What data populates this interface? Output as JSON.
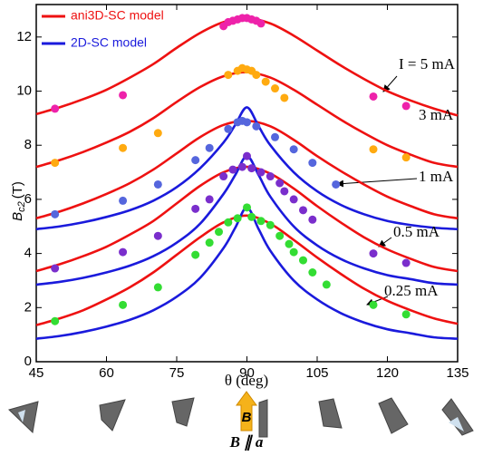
{
  "chart_data": {
    "type": "line",
    "xlabel": "θ (deg)",
    "ylabel": {
      "symbol": "B",
      "subscript": "c2",
      "unit": "(T)"
    },
    "xlim": [
      45,
      135
    ],
    "xticks": [
      45,
      60,
      75,
      90,
      105,
      120,
      135
    ],
    "ylim": [
      0,
      13.2
    ],
    "yticks": [
      0,
      2,
      4,
      6,
      8,
      10,
      12
    ],
    "legend": "upper left",
    "series": [
      {
        "name": "ani3D-SC model",
        "type": "line",
        "color": "#ee1111",
        "x": [
          45,
          50,
          55,
          60,
          65,
          70,
          75,
          80,
          85,
          90,
          95,
          100,
          105,
          110,
          115,
          120,
          125,
          130,
          135
        ],
        "values": [
          9.15,
          9.4,
          9.7,
          10.05,
          10.5,
          11.0,
          11.6,
          12.15,
          12.55,
          12.7,
          12.5,
          12.05,
          11.5,
          10.95,
          10.45,
          10.0,
          9.65,
          9.35,
          9.1
        ]
      },
      {
        "type": "line",
        "color": "#ee1111",
        "x": [
          45,
          50,
          55,
          60,
          65,
          70,
          75,
          80,
          85,
          90,
          95,
          100,
          105,
          110,
          115,
          120,
          125,
          130,
          135
        ],
        "values": [
          7.2,
          7.45,
          7.75,
          8.1,
          8.5,
          9.0,
          9.6,
          10.15,
          10.55,
          10.7,
          10.5,
          10.05,
          9.5,
          8.95,
          8.45,
          8.0,
          7.65,
          7.35,
          7.2
        ]
      },
      {
        "type": "line",
        "color": "#ee1111",
        "x": [
          45,
          50,
          55,
          60,
          65,
          70,
          75,
          80,
          85,
          90,
          95,
          100,
          105,
          110,
          115,
          120,
          125,
          130,
          135
        ],
        "values": [
          5.3,
          5.55,
          5.85,
          6.2,
          6.6,
          7.1,
          7.7,
          8.3,
          8.75,
          8.9,
          8.7,
          8.2,
          7.6,
          7.05,
          6.55,
          6.1,
          5.75,
          5.45,
          5.3
        ]
      },
      {
        "type": "line",
        "color": "#ee1111",
        "x": [
          45,
          50,
          55,
          60,
          65,
          70,
          75,
          80,
          85,
          90,
          95,
          100,
          105,
          110,
          115,
          120,
          125,
          130,
          135
        ],
        "values": [
          3.35,
          3.6,
          3.9,
          4.25,
          4.7,
          5.2,
          5.85,
          6.5,
          7.0,
          7.2,
          6.95,
          6.4,
          5.75,
          5.15,
          4.6,
          4.15,
          3.8,
          3.5,
          3.35
        ]
      },
      {
        "type": "line",
        "color": "#ee1111",
        "x": [
          45,
          50,
          55,
          60,
          65,
          70,
          75,
          80,
          85,
          90,
          95,
          100,
          105,
          110,
          115,
          120,
          125,
          130,
          135
        ],
        "values": [
          1.35,
          1.6,
          1.9,
          2.3,
          2.75,
          3.3,
          3.95,
          4.6,
          5.15,
          5.4,
          5.1,
          4.5,
          3.85,
          3.25,
          2.7,
          2.25,
          1.9,
          1.6,
          1.4
        ]
      },
      {
        "name": "2D-SC model",
        "type": "line",
        "color": "#1a1adc",
        "x": [
          45,
          50,
          55,
          60,
          65,
          70,
          75,
          80,
          85,
          87.5,
          90,
          92.5,
          95,
          100,
          105,
          110,
          115,
          120,
          125,
          130,
          135
        ],
        "values": [
          4.9,
          5.0,
          5.15,
          5.35,
          5.6,
          5.95,
          6.45,
          7.15,
          8.1,
          8.75,
          9.4,
          8.7,
          8.0,
          7.0,
          6.3,
          5.8,
          5.45,
          5.2,
          5.05,
          4.95,
          4.9
        ]
      },
      {
        "type": "line",
        "color": "#1a1adc",
        "x": [
          45,
          50,
          55,
          60,
          65,
          70,
          75,
          80,
          85,
          87.5,
          90,
          92.5,
          95,
          100,
          105,
          110,
          115,
          120,
          125,
          130,
          135
        ],
        "values": [
          2.85,
          2.95,
          3.1,
          3.3,
          3.55,
          3.9,
          4.4,
          5.1,
          6.2,
          6.9,
          7.6,
          6.9,
          6.1,
          5.0,
          4.3,
          3.8,
          3.45,
          3.2,
          3.05,
          2.9,
          2.85
        ]
      },
      {
        "type": "line",
        "color": "#1a1adc",
        "x": [
          45,
          50,
          55,
          60,
          65,
          70,
          75,
          80,
          85,
          87.5,
          90,
          92.5,
          95,
          100,
          105,
          110,
          115,
          120,
          125,
          130,
          135
        ],
        "values": [
          0.85,
          0.95,
          1.1,
          1.3,
          1.55,
          1.9,
          2.4,
          3.1,
          4.2,
          4.95,
          5.7,
          4.9,
          4.1,
          3.0,
          2.3,
          1.8,
          1.45,
          1.2,
          1.05,
          0.9,
          0.85
        ]
      },
      {
        "type": "scatter",
        "color": "#ee22aa",
        "x": [
          49,
          63.5,
          85,
          86,
          87,
          88,
          89,
          90,
          91,
          92,
          93,
          117,
          124
        ],
        "values": [
          9.35,
          9.85,
          12.4,
          12.55,
          12.6,
          12.65,
          12.7,
          12.7,
          12.65,
          12.6,
          12.5,
          9.8,
          9.45
        ]
      },
      {
        "type": "scatter",
        "color": "#ffaa10",
        "x": [
          49,
          63.5,
          71,
          86,
          88,
          89,
          90,
          91,
          92,
          94,
          96,
          98,
          117,
          124
        ],
        "values": [
          7.35,
          7.9,
          8.45,
          10.6,
          10.75,
          10.85,
          10.8,
          10.75,
          10.6,
          10.35,
          10.1,
          9.75,
          7.85,
          7.55
        ]
      },
      {
        "type": "scatter",
        "color": "#5566dd",
        "x": [
          49,
          63.5,
          71,
          79,
          82,
          86,
          88,
          89,
          90,
          92,
          96,
          100,
          104,
          109
        ],
        "values": [
          5.45,
          5.95,
          6.55,
          7.45,
          7.9,
          8.6,
          8.85,
          8.9,
          8.85,
          8.7,
          8.3,
          7.85,
          7.35,
          6.55
        ]
      },
      {
        "type": "scatter",
        "color": "#7a2ecc",
        "x": [
          49,
          63.5,
          71,
          79,
          82,
          85,
          87,
          89,
          90,
          91,
          93,
          95,
          97,
          98,
          100,
          102,
          104,
          117,
          124
        ],
        "values": [
          3.45,
          4.05,
          4.65,
          5.65,
          6.0,
          6.85,
          7.1,
          7.2,
          7.6,
          7.15,
          7.0,
          6.85,
          6.6,
          6.3,
          6.0,
          5.6,
          5.25,
          4.0,
          3.65
        ]
      },
      {
        "type": "scatter",
        "color": "#33dd33",
        "x": [
          49,
          63.5,
          71,
          79,
          82,
          84,
          86,
          88,
          90,
          91,
          93,
          95,
          97,
          99,
          100,
          102,
          104,
          107,
          117,
          124
        ],
        "values": [
          1.5,
          2.1,
          2.75,
          3.95,
          4.4,
          4.8,
          5.15,
          5.3,
          5.7,
          5.35,
          5.2,
          5.05,
          4.65,
          4.35,
          4.05,
          3.75,
          3.3,
          2.85,
          2.1,
          1.75
        ]
      }
    ],
    "annotations": [
      "I = 5 mA",
      "3 mA",
      "1 mA",
      "0.5 mA",
      "0.25 mA"
    ],
    "orientation_label": "B",
    "orientation_caption": "B ∥ a"
  }
}
